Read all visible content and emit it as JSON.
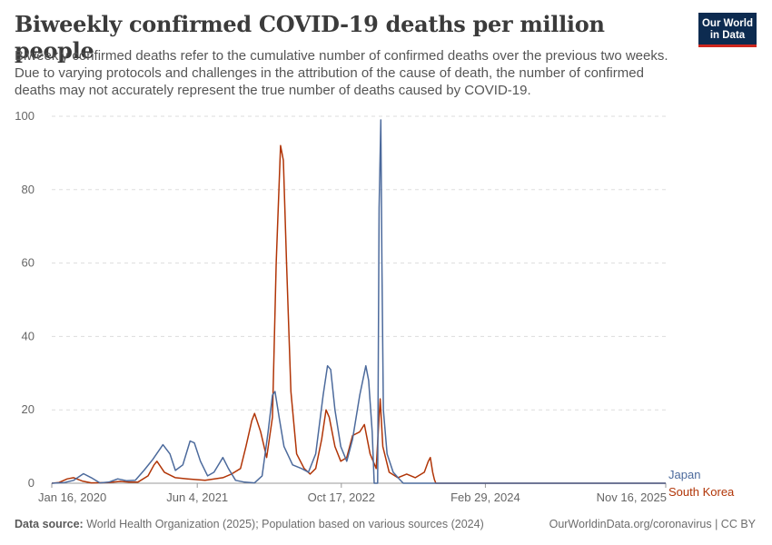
{
  "header": {
    "title": "Biweekly confirmed COVID-19 deaths per million people",
    "subtitle": "Biweekly confirmed deaths refer to the cumulative number of confirmed deaths over the previous two weeks. Due to varying protocols and challenges in the attribution of the cause of death, the number of confirmed deaths may not accurately represent the true number of deaths caused by COVID-19."
  },
  "logo": {
    "line1": "Our World",
    "line2": "in Data"
  },
  "footer": {
    "source_label": "Data source:",
    "source_text": "World Health Organization (2025); Population based on various sources (2024)",
    "url": "OurWorldinData.org/coronavirus | CC BY"
  },
  "colors": {
    "Japan": "#4c6a9c",
    "South Korea": "#b13507",
    "grid": "#dddddd",
    "axis": "#999999"
  },
  "chart_data": {
    "type": "line",
    "title": "Biweekly confirmed COVID-19 deaths per million people",
    "ylim": [
      0,
      100
    ],
    "yticks": [
      0,
      20,
      40,
      60,
      80,
      100
    ],
    "xlim": [
      "2020-01-16",
      "2025-11-16"
    ],
    "xticks": [
      "2020-01-16",
      "2021-06-04",
      "2022-10-17",
      "2024-02-29",
      "2025-11-16"
    ],
    "xtick_labels": [
      "Jan 16, 2020",
      "Jun 4, 2021",
      "Oct 17, 2022",
      "Feb 29, 2024",
      "Nov 16, 2025"
    ],
    "grid": true,
    "legend": "right (labels at line ends)",
    "series": [
      {
        "name": "Japan",
        "points": [
          [
            "2020-01-16",
            0
          ],
          [
            "2020-03-01",
            0.2
          ],
          [
            "2020-04-01",
            0.8
          ],
          [
            "2020-05-05",
            2.6
          ],
          [
            "2020-06-01",
            1.5
          ],
          [
            "2020-07-01",
            0.1
          ],
          [
            "2020-08-01",
            0.3
          ],
          [
            "2020-09-01",
            1.2
          ],
          [
            "2020-10-01",
            0.7
          ],
          [
            "2020-11-01",
            0.8
          ],
          [
            "2020-12-01",
            3.5
          ],
          [
            "2021-01-01",
            6.5
          ],
          [
            "2021-02-05",
            10.5
          ],
          [
            "2021-03-01",
            8
          ],
          [
            "2021-03-20",
            3.5
          ],
          [
            "2021-04-15",
            5
          ],
          [
            "2021-05-10",
            11.5
          ],
          [
            "2021-05-25",
            11
          ],
          [
            "2021-06-15",
            6
          ],
          [
            "2021-07-10",
            2
          ],
          [
            "2021-08-01",
            3
          ],
          [
            "2021-09-01",
            7
          ],
          [
            "2021-09-20",
            4
          ],
          [
            "2021-10-15",
            0.8
          ],
          [
            "2021-11-15",
            0.3
          ],
          [
            "2021-12-20",
            0.1
          ],
          [
            "2022-01-15",
            2
          ],
          [
            "2022-02-05",
            14
          ],
          [
            "2022-02-20",
            24
          ],
          [
            "2022-03-01",
            25
          ],
          [
            "2022-03-15",
            18
          ],
          [
            "2022-04-01",
            10
          ],
          [
            "2022-05-01",
            5
          ],
          [
            "2022-06-01",
            4
          ],
          [
            "2022-06-25",
            3
          ],
          [
            "2022-07-20",
            8
          ],
          [
            "2022-08-15",
            24
          ],
          [
            "2022-08-30",
            32
          ],
          [
            "2022-09-10",
            31
          ],
          [
            "2022-09-25",
            20
          ],
          [
            "2022-10-15",
            10
          ],
          [
            "2022-11-05",
            6
          ],
          [
            "2022-11-25",
            12
          ],
          [
            "2022-12-20",
            24
          ],
          [
            "2023-01-10",
            32
          ],
          [
            "2023-01-20",
            28
          ],
          [
            "2023-02-01",
            14
          ],
          [
            "2023-02-08",
            0
          ],
          [
            "2023-02-20",
            0
          ],
          [
            "2023-02-25",
            75
          ],
          [
            "2023-03-03",
            99
          ],
          [
            "2023-03-07",
            60
          ],
          [
            "2023-03-12",
            20
          ],
          [
            "2023-03-25",
            8
          ],
          [
            "2023-04-15",
            3
          ],
          [
            "2023-05-08",
            1
          ],
          [
            "2023-05-20",
            0
          ],
          [
            "2025-11-16",
            0
          ]
        ]
      },
      {
        "name": "South Korea",
        "points": [
          [
            "2020-01-16",
            0
          ],
          [
            "2020-02-10",
            0.2
          ],
          [
            "2020-03-10",
            1.2
          ],
          [
            "2020-04-01",
            1.5
          ],
          [
            "2020-05-01",
            0.6
          ],
          [
            "2020-06-01",
            0.1
          ],
          [
            "2020-08-01",
            0.2
          ],
          [
            "2020-09-10",
            0.5
          ],
          [
            "2020-10-10",
            0.3
          ],
          [
            "2020-11-10",
            0.3
          ],
          [
            "2020-12-15",
            2
          ],
          [
            "2021-01-05",
            5
          ],
          [
            "2021-01-15",
            6
          ],
          [
            "2021-02-10",
            3
          ],
          [
            "2021-03-20",
            1.5
          ],
          [
            "2021-05-01",
            1.2
          ],
          [
            "2021-07-01",
            0.8
          ],
          [
            "2021-09-01",
            1.5
          ],
          [
            "2021-10-01",
            2.5
          ],
          [
            "2021-11-01",
            4
          ],
          [
            "2021-11-20",
            10
          ],
          [
            "2021-12-10",
            17
          ],
          [
            "2021-12-20",
            19
          ],
          [
            "2022-01-10",
            14
          ],
          [
            "2022-01-31",
            7
          ],
          [
            "2022-02-20",
            18
          ],
          [
            "2022-03-05",
            60
          ],
          [
            "2022-03-20",
            92
          ],
          [
            "2022-03-30",
            88
          ],
          [
            "2022-04-10",
            60
          ],
          [
            "2022-04-25",
            25
          ],
          [
            "2022-05-15",
            8
          ],
          [
            "2022-06-10",
            4
          ],
          [
            "2022-07-01",
            2.5
          ],
          [
            "2022-07-20",
            4
          ],
          [
            "2022-08-10",
            12
          ],
          [
            "2022-08-25",
            20
          ],
          [
            "2022-09-05",
            18
          ],
          [
            "2022-09-25",
            10
          ],
          [
            "2022-10-15",
            6
          ],
          [
            "2022-11-05",
            7
          ],
          [
            "2022-11-25",
            13
          ],
          [
            "2022-12-20",
            14
          ],
          [
            "2023-01-05",
            16
          ],
          [
            "2023-01-25",
            8
          ],
          [
            "2023-02-15",
            4
          ],
          [
            "2023-02-25",
            18
          ],
          [
            "2023-03-01",
            23
          ],
          [
            "2023-03-10",
            10
          ],
          [
            "2023-04-01",
            3
          ],
          [
            "2023-05-01",
            1.5
          ],
          [
            "2023-06-01",
            2.5
          ],
          [
            "2023-07-01",
            1.5
          ],
          [
            "2023-08-01",
            3
          ],
          [
            "2023-08-15",
            6
          ],
          [
            "2023-08-22",
            7
          ],
          [
            "2023-08-30",
            3
          ],
          [
            "2023-09-05",
            1
          ],
          [
            "2023-09-10",
            0
          ],
          [
            "2025-11-16",
            0
          ]
        ]
      }
    ],
    "series_labels": [
      "Japan",
      "South Korea"
    ]
  }
}
